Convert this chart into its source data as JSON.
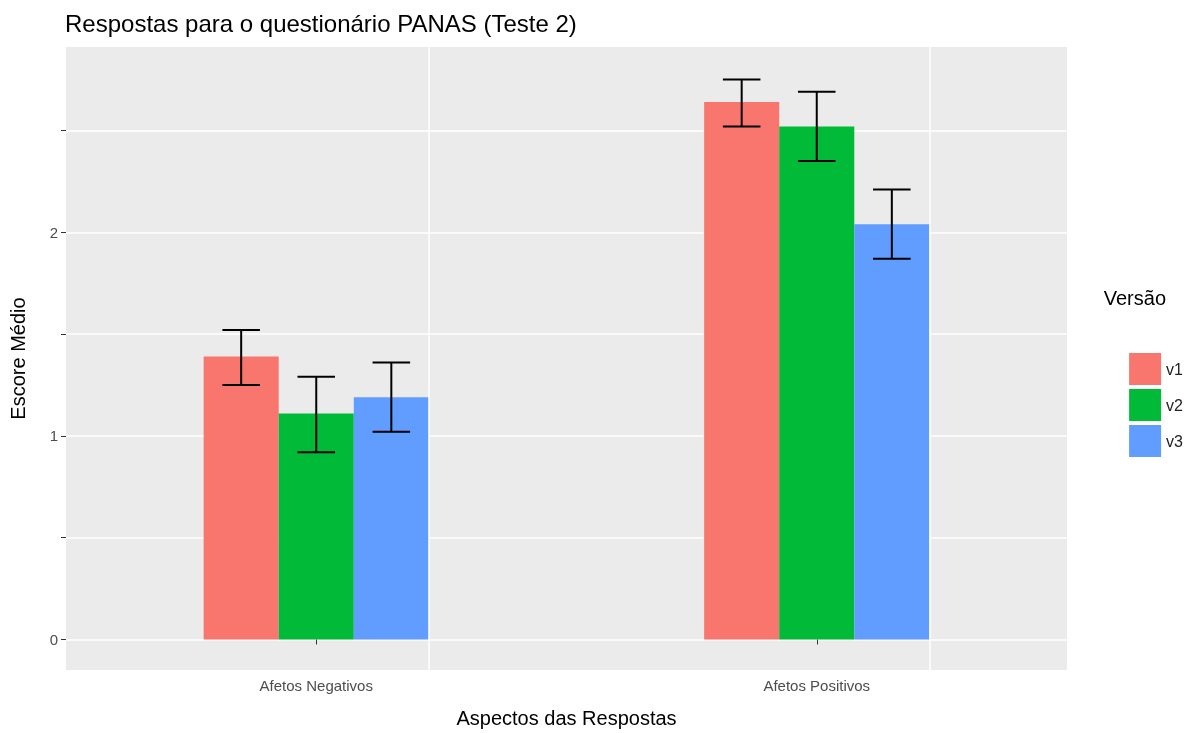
{
  "chart_data": {
    "type": "bar",
    "title": "Respostas para o questionário PANAS (Teste 2)",
    "xlabel": "Aspectos das Respostas",
    "ylabel": "Escore Médio",
    "legend_title": "Versão",
    "categories": [
      "Afetos Negativos",
      "Afetos Positivos"
    ],
    "series": [
      {
        "name": "v1",
        "color": "#f8766d",
        "values": [
          1.39,
          2.64
        ],
        "errors": [
          [
            1.25,
            1.52
          ],
          [
            2.52,
            2.75
          ]
        ]
      },
      {
        "name": "v2",
        "color": "#00ba38",
        "values": [
          1.11,
          2.52
        ],
        "errors": [
          [
            0.92,
            1.29
          ],
          [
            2.35,
            2.69
          ]
        ]
      },
      {
        "name": "v3",
        "color": "#619cff",
        "values": [
          1.19,
          2.04
        ],
        "errors": [
          [
            1.02,
            1.36
          ],
          [
            1.87,
            2.21
          ]
        ]
      }
    ],
    "ylim": [
      -0.15,
      2.91
    ],
    "yticks": [
      0,
      {
        "value": 0.5,
        "label": null
      },
      1,
      {
        "value": 1.5,
        "label": null
      },
      2,
      {
        "value": 2.5,
        "label": null
      }
    ],
    "grid": true,
    "legend": "right"
  }
}
